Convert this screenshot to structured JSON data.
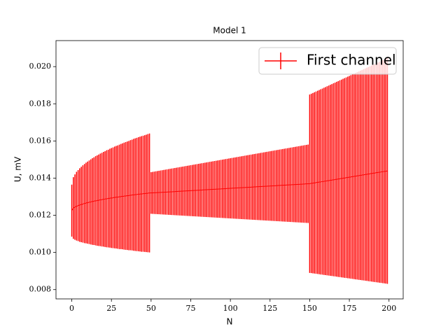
{
  "chart_data": {
    "type": "errorbar",
    "title": "Model 1",
    "x_label": "N",
    "y_label": "U, mV",
    "x": [
      0,
      1,
      2,
      3,
      4,
      5,
      6,
      7,
      8,
      9,
      10,
      11,
      12,
      13,
      14,
      15,
      16,
      17,
      18,
      19,
      20,
      21,
      22,
      23,
      24,
      25,
      26,
      27,
      28,
      29,
      30,
      31,
      32,
      33,
      34,
      35,
      36,
      37,
      38,
      39,
      40,
      41,
      42,
      43,
      44,
      45,
      46,
      47,
      48,
      49,
      50,
      51,
      52,
      53,
      54,
      55,
      56,
      57,
      58,
      59,
      60,
      61,
      62,
      63,
      64,
      65,
      66,
      67,
      68,
      69,
      70,
      71,
      72,
      73,
      74,
      75,
      76,
      77,
      78,
      79,
      80,
      81,
      82,
      83,
      84,
      85,
      86,
      87,
      88,
      89,
      90,
      91,
      92,
      93,
      94,
      95,
      96,
      97,
      98,
      99,
      100,
      101,
      102,
      103,
      104,
      105,
      106,
      107,
      108,
      109,
      110,
      111,
      112,
      113,
      114,
      115,
      116,
      117,
      118,
      119,
      120,
      121,
      122,
      123,
      124,
      125,
      126,
      127,
      128,
      129,
      130,
      131,
      132,
      133,
      134,
      135,
      136,
      137,
      138,
      139,
      140,
      141,
      142,
      143,
      144,
      145,
      146,
      147,
      148,
      149,
      150,
      151,
      152,
      153,
      154,
      155,
      156,
      157,
      158,
      159,
      160,
      161,
      162,
      163,
      164,
      165,
      166,
      167,
      168,
      169,
      170,
      171,
      172,
      173,
      174,
      175,
      176,
      177,
      178,
      179,
      180,
      181,
      182,
      183,
      184,
      185,
      186,
      187,
      188,
      189,
      190,
      191,
      192,
      193,
      194,
      195,
      196,
      197,
      198,
      199
    ],
    "series": [
      {
        "name": "First channel",
        "color": "#ff0000",
        "values": [
          0.01225,
          0.01239,
          0.01244,
          0.01249,
          0.01252,
          0.01255,
          0.01258,
          0.01261,
          0.01263,
          0.01266,
          0.01268,
          0.0127,
          0.01272,
          0.01274,
          0.01276,
          0.01278,
          0.01279,
          0.01281,
          0.01283,
          0.01284,
          0.01286,
          0.01287,
          0.01289,
          0.0129,
          0.01292,
          0.01293,
          0.01294,
          0.01296,
          0.01297,
          0.01298,
          0.01299,
          0.01301,
          0.01302,
          0.01303,
          0.01304,
          0.01305,
          0.01306,
          0.01308,
          0.01309,
          0.0131,
          0.01311,
          0.01312,
          0.01313,
          0.01314,
          0.01315,
          0.01316,
          0.01317,
          0.01318,
          0.01319,
          0.0132,
          0.0132,
          0.013205,
          0.01321,
          0.013215,
          0.01322,
          0.013225,
          0.01323,
          0.013235,
          0.01324,
          0.013245,
          0.01325,
          0.013255,
          0.01326,
          0.013265,
          0.01327,
          0.013275,
          0.01328,
          0.013285,
          0.01329,
          0.013295,
          0.0133,
          0.013305,
          0.01331,
          0.013315,
          0.01332,
          0.013325,
          0.01333,
          0.013335,
          0.01334,
          0.013345,
          0.01335,
          0.013355,
          0.01336,
          0.013365,
          0.01337,
          0.013375,
          0.01338,
          0.013385,
          0.01339,
          0.013395,
          0.0134,
          0.013405,
          0.01341,
          0.013415,
          0.01342,
          0.013425,
          0.01343,
          0.013435,
          0.01344,
          0.013445,
          0.01345,
          0.013455,
          0.01346,
          0.013465,
          0.01347,
          0.013475,
          0.01348,
          0.013485,
          0.01349,
          0.013495,
          0.0135,
          0.013505,
          0.01351,
          0.013515,
          0.01352,
          0.013525,
          0.01353,
          0.013535,
          0.01354,
          0.013545,
          0.01355,
          0.013555,
          0.01356,
          0.013565,
          0.01357,
          0.013575,
          0.01358,
          0.013585,
          0.01359,
          0.013595,
          0.0136,
          0.013605,
          0.01361,
          0.013615,
          0.01362,
          0.013625,
          0.01363,
          0.013635,
          0.01364,
          0.013645,
          0.01365,
          0.013655,
          0.01366,
          0.013665,
          0.01367,
          0.013675,
          0.01368,
          0.013685,
          0.01369,
          0.013695,
          0.0137,
          0.013714,
          0.013728,
          0.013742,
          0.013756,
          0.01377,
          0.013784,
          0.013798,
          0.013812,
          0.013826,
          0.01384,
          0.013854,
          0.013868,
          0.013882,
          0.013896,
          0.01391,
          0.013924,
          0.013938,
          0.013952,
          0.013966,
          0.01398,
          0.013994,
          0.014008,
          0.014022,
          0.014036,
          0.01405,
          0.014064,
          0.014078,
          0.014092,
          0.014106,
          0.01412,
          0.014134,
          0.014148,
          0.014162,
          0.014176,
          0.01419,
          0.014204,
          0.014218,
          0.014232,
          0.014246,
          0.01426,
          0.014274,
          0.014288,
          0.014302,
          0.014316,
          0.01433,
          0.014344,
          0.014358,
          0.014372,
          0.014386
        ],
        "errors": [
          0.0014,
          0.00166,
          0.00176,
          0.00185,
          0.00191,
          0.00198,
          0.00203,
          0.00208,
          0.00213,
          0.00217,
          0.00221,
          0.00225,
          0.00229,
          0.00233,
          0.00236,
          0.0024,
          0.00243,
          0.00246,
          0.00249,
          0.00252,
          0.00255,
          0.00258,
          0.00261,
          0.00263,
          0.00266,
          0.00269,
          0.00271,
          0.00274,
          0.00276,
          0.00278,
          0.00281,
          0.00283,
          0.00285,
          0.00288,
          0.0029,
          0.00292,
          0.00294,
          0.00296,
          0.00298,
          0.00301,
          0.00303,
          0.00305,
          0.00307,
          0.00309,
          0.00311,
          0.00312,
          0.00314,
          0.00316,
          0.00318,
          0.0032,
          0.00112,
          0.00113,
          0.00114,
          0.00115,
          0.00116,
          0.00117,
          0.00118,
          0.00119,
          0.0012,
          0.00121,
          0.00122,
          0.00123,
          0.00124,
          0.00125,
          0.00126,
          0.00127,
          0.00128,
          0.00129,
          0.0013,
          0.00131,
          0.00132,
          0.00133,
          0.00134,
          0.00135,
          0.00136,
          0.00137,
          0.00138,
          0.00139,
          0.0014,
          0.00141,
          0.00142,
          0.00143,
          0.00144,
          0.00145,
          0.00146,
          0.00147,
          0.00148,
          0.00149,
          0.0015,
          0.00151,
          0.00152,
          0.00153,
          0.00154,
          0.00155,
          0.00156,
          0.00157,
          0.00158,
          0.00159,
          0.0016,
          0.00161,
          0.00162,
          0.00163,
          0.00164,
          0.00165,
          0.00166,
          0.00167,
          0.00168,
          0.00169,
          0.0017,
          0.00171,
          0.00172,
          0.00173,
          0.00174,
          0.00175,
          0.00176,
          0.00177,
          0.00178,
          0.00179,
          0.0018,
          0.00181,
          0.00182,
          0.00183,
          0.00184,
          0.00185,
          0.00186,
          0.00187,
          0.00188,
          0.00189,
          0.0019,
          0.00191,
          0.00192,
          0.00193,
          0.00194,
          0.00195,
          0.00196,
          0.00197,
          0.00198,
          0.00199,
          0.002,
          0.00201,
          0.00202,
          0.00203,
          0.00204,
          0.00205,
          0.00206,
          0.00207,
          0.00208,
          0.00209,
          0.0021,
          0.00211,
          0.0048,
          0.004826,
          0.004852,
          0.004878,
          0.004904,
          0.00493,
          0.004956,
          0.004982,
          0.005008,
          0.005034,
          0.00506,
          0.005086,
          0.005112,
          0.005138,
          0.005164,
          0.00519,
          0.005216,
          0.005242,
          0.005268,
          0.005294,
          0.00532,
          0.005346,
          0.005372,
          0.005398,
          0.005424,
          0.00545,
          0.005476,
          0.005502,
          0.005528,
          0.005554,
          0.00558,
          0.005606,
          0.005632,
          0.005658,
          0.005684,
          0.00571,
          0.005736,
          0.005762,
          0.005788,
          0.005814,
          0.00584,
          0.005866,
          0.005892,
          0.005918,
          0.005944,
          0.00597,
          0.005996,
          0.006022,
          0.006048,
          0.006074
        ]
      }
    ],
    "xlim": [
      -9.95,
      208.95
    ],
    "xticks": [
      0,
      25,
      50,
      75,
      100,
      125,
      150,
      175,
      200
    ],
    "ylim": [
      0.0075,
      0.0214
    ],
    "yticks": [
      0.008,
      {
        "value": 0.01,
        "label": "0.010"
      },
      0.012,
      0.014,
      0.016,
      0.018,
      {
        "value": 0.02,
        "label": "0.020"
      }
    ],
    "legend": "upper right",
    "grid": false
  }
}
